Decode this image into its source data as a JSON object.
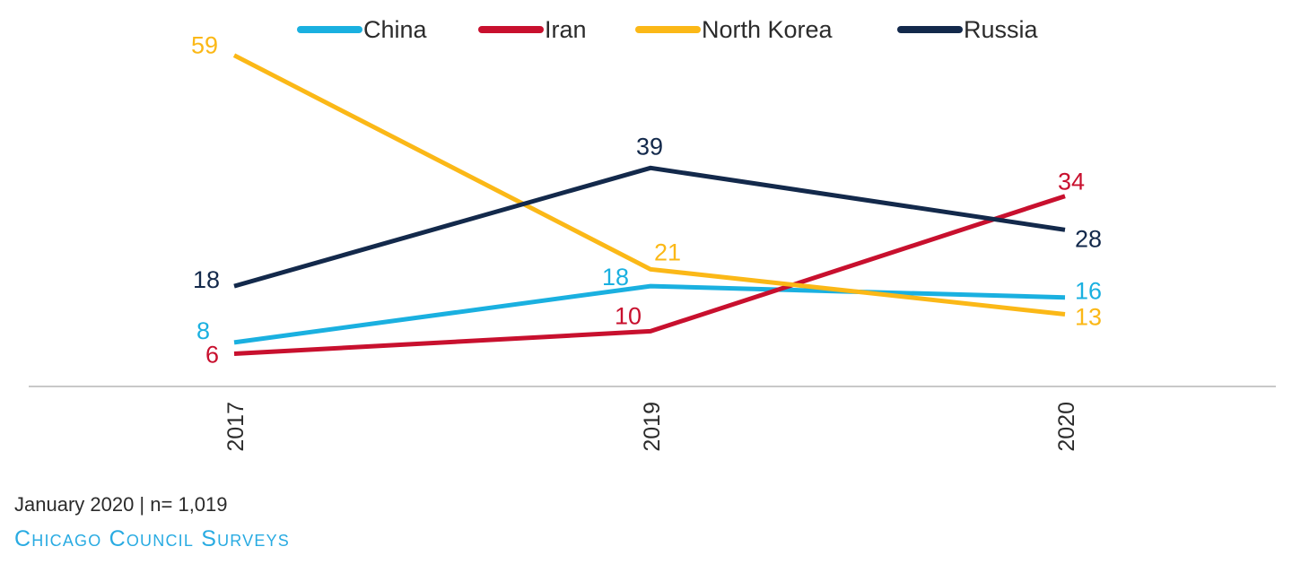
{
  "chart_data": {
    "type": "line",
    "categories": [
      "2017",
      "2019",
      "2020"
    ],
    "series": [
      {
        "name": "China",
        "color": "#1ab0e0",
        "values": [
          8,
          18,
          16
        ],
        "labels": [
          "8",
          "18",
          "16"
        ]
      },
      {
        "name": "Iran",
        "color": "#c8102e",
        "values": [
          6,
          10,
          34
        ],
        "labels": [
          "6",
          "10",
          "34"
        ]
      },
      {
        "name": "North Korea",
        "color": "#fbb817",
        "values": [
          59,
          21,
          13
        ],
        "labels": [
          "59",
          "21",
          "13"
        ]
      },
      {
        "name": "Russia",
        "color": "#13294b",
        "values": [
          18,
          39,
          28
        ],
        "labels": [
          "18",
          "39",
          "28"
        ]
      }
    ],
    "legend_position": "top",
    "grid": false
  },
  "footer": {
    "note": "January 2020 | n= 1,019",
    "brand": "Chicago Council Surveys"
  }
}
